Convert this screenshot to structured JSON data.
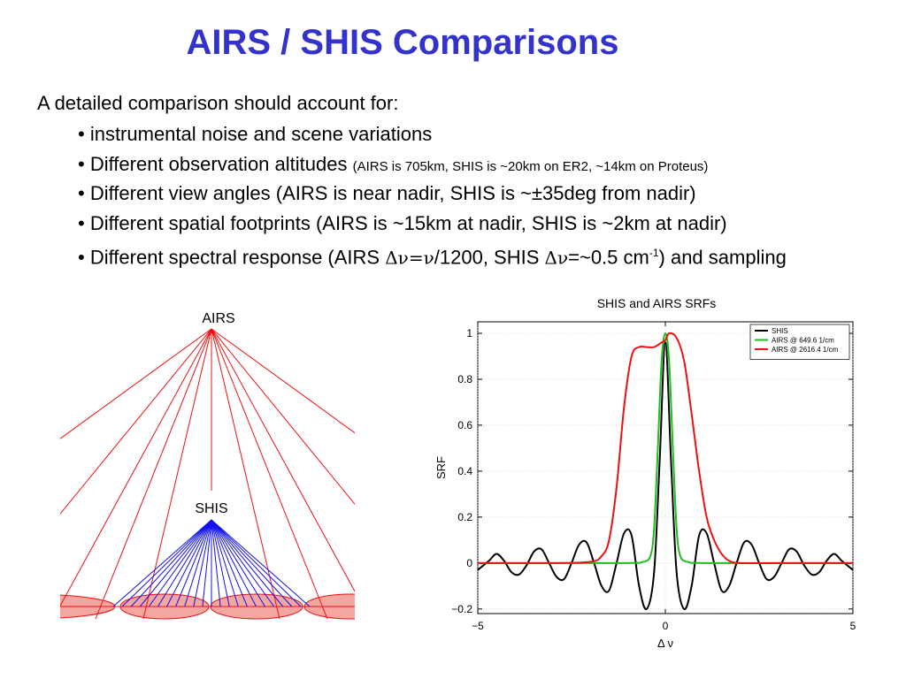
{
  "slide": {
    "title": "AIRS / SHIS Comparisons",
    "intro": "A detailed comparison should account for:",
    "bullets": [
      {
        "main": "• instrumental noise and scene variations",
        "note": ""
      },
      {
        "main": "• Different observation altitudes",
        "note": "(AIRS is 705km, SHIS is ~20km on ER2, ~14km on Proteus)"
      },
      {
        "main": "• Different view angles (AIRS is near nadir, SHIS is ~±35deg from nadir)",
        "note": ""
      },
      {
        "main": "• Different spatial footprints (AIRS is ~15km at nadir, SHIS is ~2km at nadir)",
        "note": ""
      }
    ],
    "last_bullet": {
      "p1": "• Different spectral response (AIRS ",
      "dnu1": "Δν=ν",
      "p2": "/1200, SHIS ",
      "dnu2": "Δν",
      "p3": "=~0.5 cm",
      "sup": "-1",
      "p4": ") and sampling"
    }
  },
  "diagram": {
    "airs_label": "AIRS",
    "shis_label": "SHIS",
    "airs_color": "#ee1111",
    "shis_color": "#1111ee",
    "footprint_fill": "#f4a6a0"
  },
  "chart_data": {
    "type": "line",
    "title": "SHIS and AIRS SRFs",
    "xlabel": "Δ ν",
    "ylabel": "SRF",
    "xlim": [
      -5,
      5
    ],
    "ylim": [
      -0.22,
      1.05
    ],
    "xticks": [
      -5,
      0,
      5
    ],
    "xtick_labels": [
      "−5",
      "0",
      "5"
    ],
    "yticks": [
      -0.2,
      0,
      0.2,
      0.4,
      0.6,
      0.8,
      1
    ],
    "ytick_labels": [
      "−0.2",
      "0",
      "0.2",
      "0.4",
      "0.6",
      "0.8",
      "1"
    ],
    "grid": true,
    "legend_position": "top-right",
    "series": [
      {
        "name": "SHIS",
        "color": "#000000",
        "x": [
          -5,
          -4.7,
          -4.5,
          -4.3,
          -4.1,
          -3.9,
          -3.7,
          -3.5,
          -3.3,
          -3.1,
          -2.9,
          -2.7,
          -2.5,
          -2.3,
          -2.1,
          -1.9,
          -1.7,
          -1.5,
          -1.3,
          -1.1,
          -0.9,
          -0.7,
          -0.5,
          -0.3,
          -0.15,
          0,
          0.15,
          0.3,
          0.5,
          0.7,
          0.9,
          1.1,
          1.3,
          1.5,
          1.7,
          1.9,
          2.1,
          2.3,
          2.5,
          2.7,
          2.9,
          3.1,
          3.3,
          3.5,
          3.7,
          3.9,
          4.1,
          4.3,
          4.5,
          4.7,
          5
        ],
        "y": [
          -0.03,
          0.01,
          0.04,
          0.01,
          -0.04,
          -0.05,
          -0.01,
          0.05,
          0.06,
          0.0,
          -0.06,
          -0.07,
          0.0,
          0.08,
          0.09,
          0.0,
          -0.1,
          -0.12,
          0.0,
          0.13,
          0.12,
          -0.1,
          -0.2,
          -0.04,
          0.45,
          0.96,
          0.45,
          -0.04,
          -0.2,
          -0.1,
          0.12,
          0.13,
          0.0,
          -0.12,
          -0.1,
          0.0,
          0.09,
          0.08,
          0.0,
          -0.07,
          -0.06,
          0.0,
          0.06,
          0.05,
          -0.01,
          -0.05,
          -0.04,
          0.01,
          0.04,
          0.01,
          -0.03
        ]
      },
      {
        "name": "AIRS @ 649.6 1/cm",
        "color": "#22bb22",
        "x": [
          -5,
          -3,
          -1,
          -0.6,
          -0.4,
          -0.3,
          -0.2,
          -0.1,
          0,
          0.1,
          0.2,
          0.3,
          0.4,
          0.6,
          1,
          3,
          5
        ],
        "y": [
          0,
          0,
          0,
          0.005,
          0.03,
          0.15,
          0.5,
          0.88,
          1.0,
          0.88,
          0.5,
          0.15,
          0.03,
          0.005,
          0,
          0,
          0
        ]
      },
      {
        "name": "AIRS @ 2616.4 1/cm",
        "color": "#ee1111",
        "x": [
          -5,
          -3,
          -2,
          -1.7,
          -1.5,
          -1.3,
          -1.1,
          -0.9,
          -0.7,
          -0.5,
          -0.3,
          -0.1,
          0,
          0.1,
          0.3,
          0.5,
          0.7,
          0.9,
          1.1,
          1.3,
          1.5,
          1.7,
          2,
          3,
          5
        ],
        "y": [
          0,
          0,
          0.005,
          0.03,
          0.1,
          0.33,
          0.68,
          0.9,
          0.94,
          0.94,
          0.94,
          0.96,
          0.97,
          1.0,
          0.98,
          0.88,
          0.65,
          0.4,
          0.2,
          0.1,
          0.04,
          0.01,
          0,
          0,
          0
        ]
      }
    ]
  }
}
